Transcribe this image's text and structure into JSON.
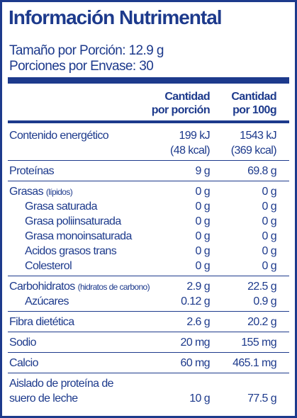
{
  "title": "Información Nutrimental",
  "serving": [
    "Tamaño por Porción: 12.9 g",
    "Porciones por Envase: 30"
  ],
  "table": {
    "headers": [
      [
        "Cantidad",
        "por porción"
      ],
      [
        "Cantidad",
        "por 100g"
      ]
    ],
    "groups": [
      {
        "label": [
          "Contenido energético"
        ],
        "values": [
          [
            "199 kJ",
            "(48 kcal)"
          ],
          [
            "1543 kJ",
            "(369 kcal)"
          ]
        ]
      },
      {
        "label": [
          "Proteínas"
        ],
        "values": [
          [
            "9 g"
          ],
          [
            "69.8 g"
          ]
        ]
      },
      {
        "label": [
          "Grasas"
        ],
        "note": "(lípidos)",
        "values": [
          [
            "0 g"
          ],
          [
            "0 g"
          ]
        ],
        "sub": [
          {
            "label": [
              "Grasa saturada"
            ],
            "values": [
              [
                "0 g"
              ],
              [
                "0 g"
              ]
            ]
          },
          {
            "label": [
              "Grasa poliinsaturada"
            ],
            "values": [
              [
                "0 g"
              ],
              [
                "0 g"
              ]
            ]
          },
          {
            "label": [
              "Grasa monoinsaturada"
            ],
            "values": [
              [
                "0 g"
              ],
              [
                "0 g"
              ]
            ]
          },
          {
            "label": [
              "Acidos grasos trans"
            ],
            "values": [
              [
                "0 g"
              ],
              [
                "0 g"
              ]
            ]
          },
          {
            "label": [
              "Colesterol"
            ],
            "values": [
              [
                "0 g"
              ],
              [
                "0 g"
              ]
            ]
          }
        ]
      },
      {
        "label": [
          "Carbohidratos"
        ],
        "note": "(hidratos de carbono)",
        "values": [
          [
            "2.9 g"
          ],
          [
            "22.5 g"
          ]
        ],
        "sub": [
          {
            "label": [
              "Azúcares"
            ],
            "values": [
              [
                "0.12 g"
              ],
              [
                "0.9 g"
              ]
            ]
          }
        ]
      },
      {
        "label": [
          "Fibra dietética"
        ],
        "values": [
          [
            "2.6 g"
          ],
          [
            "20.2 g"
          ]
        ]
      },
      {
        "label": [
          "Sodio"
        ],
        "values": [
          [
            "20 mg"
          ],
          [
            "155 mg"
          ]
        ]
      },
      {
        "label": [
          "Calcio"
        ],
        "values": [
          [
            "60 mg"
          ],
          [
            "465.1 mg"
          ]
        ]
      },
      {
        "label": [
          "Aislado de proteína de",
          "suero de leche"
        ],
        "values": [
          [
            "10 g"
          ],
          [
            "77.5 g"
          ]
        ]
      }
    ]
  }
}
